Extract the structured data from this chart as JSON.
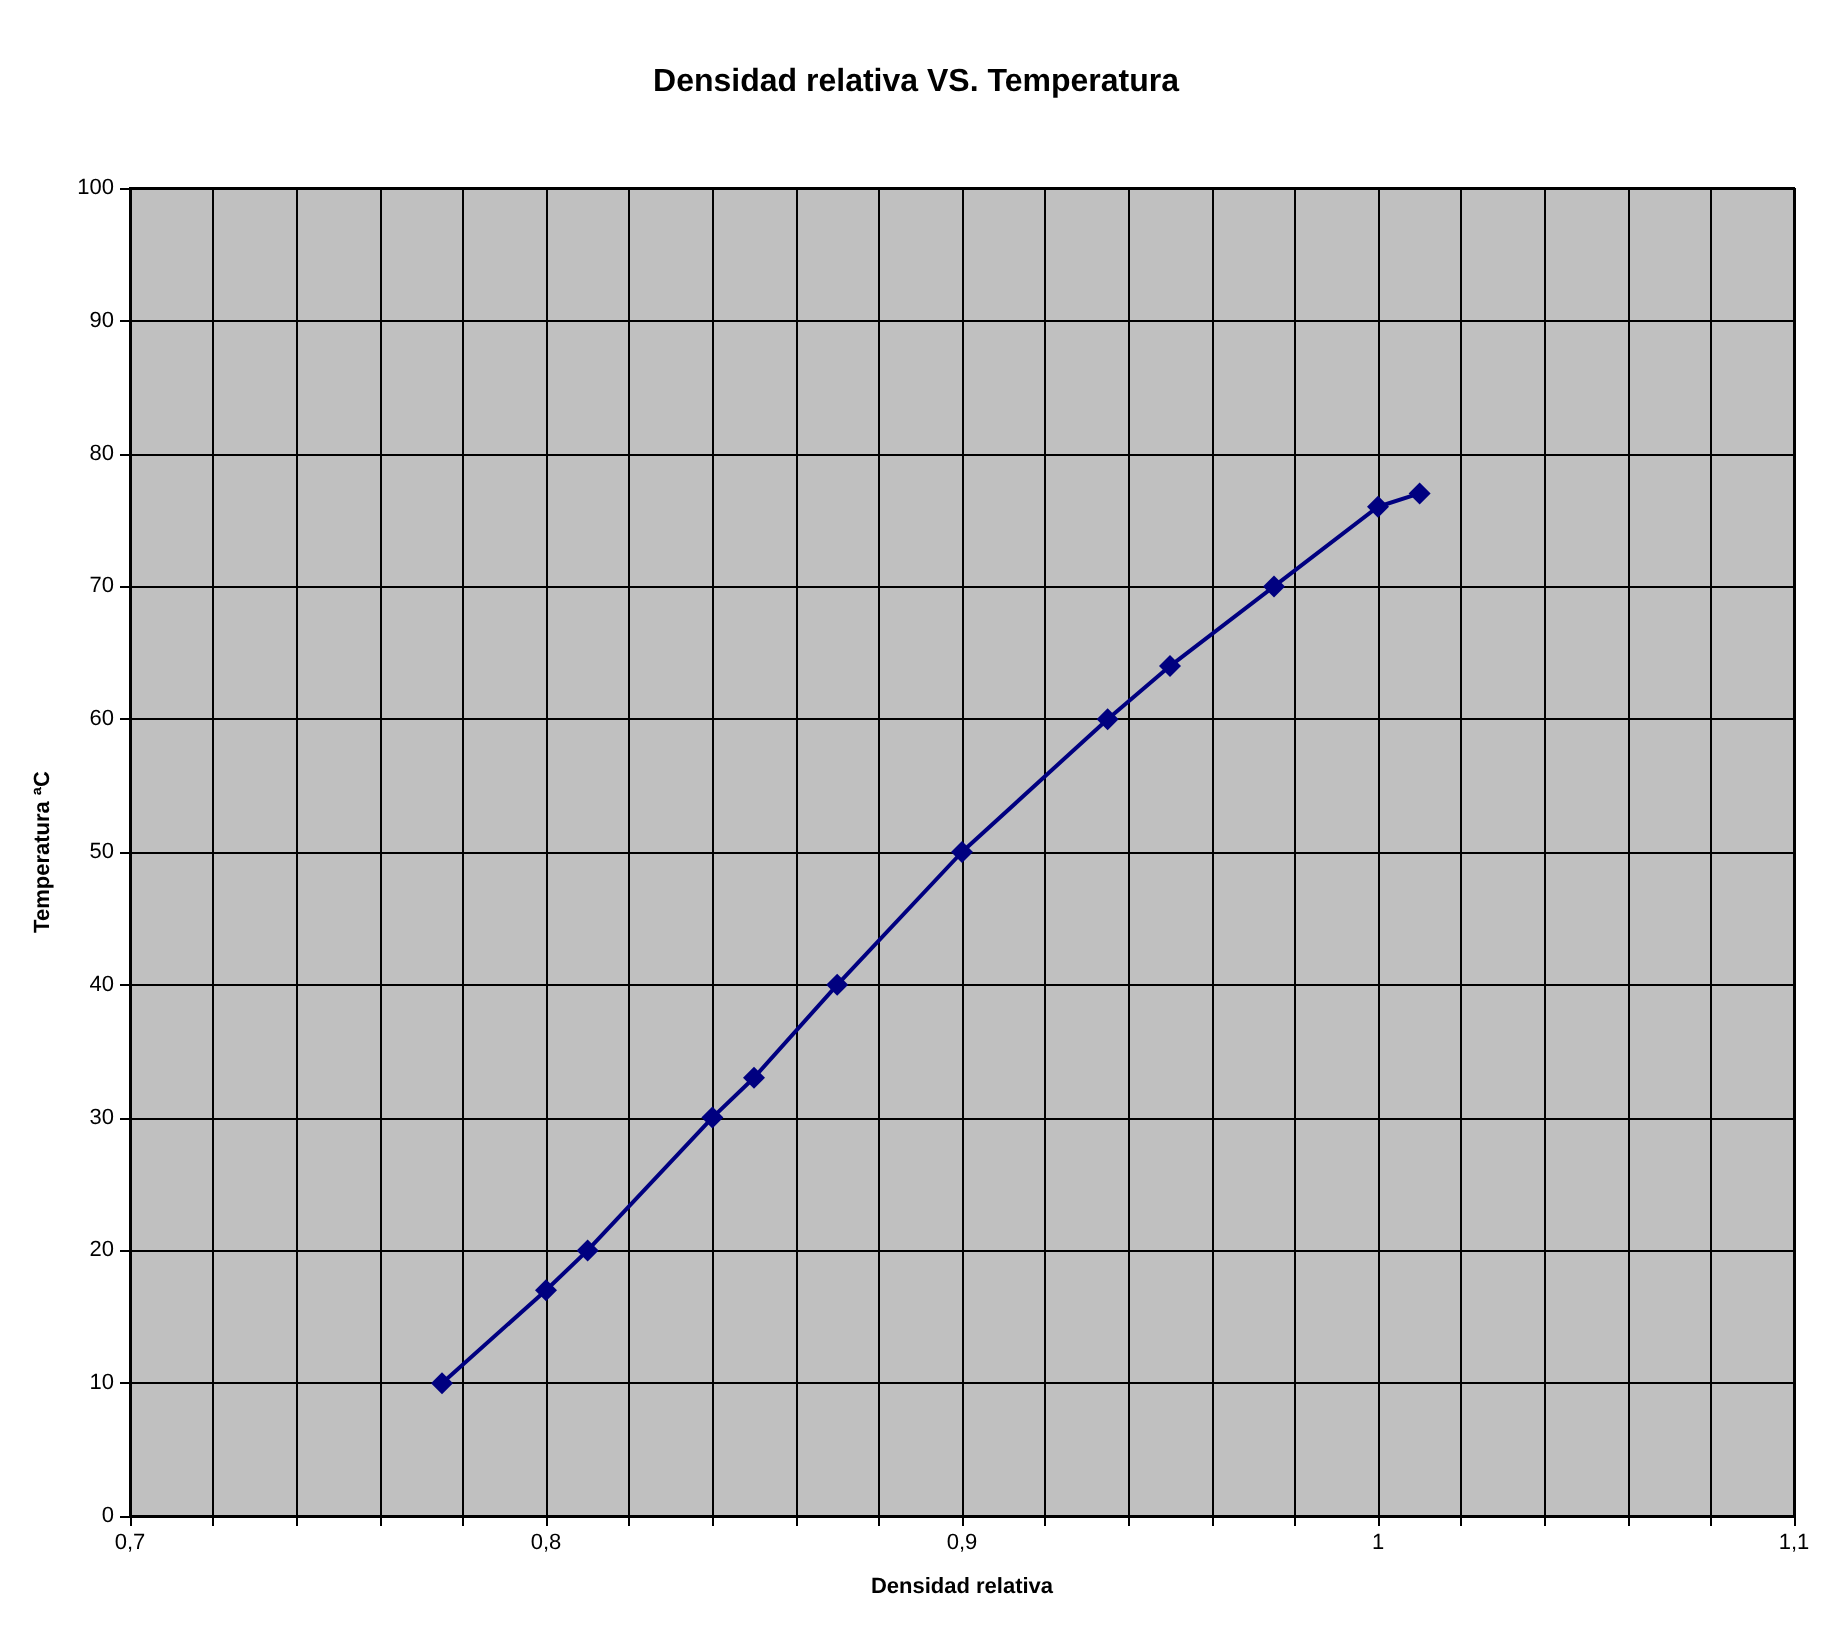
{
  "chart_data": {
    "type": "line",
    "title": "Densidad relativa VS. Temperatura",
    "xlabel": "Densidad relativa",
    "ylabel": "Temperatura ªC",
    "x": [
      0.775,
      0.8,
      0.81,
      0.84,
      0.85,
      0.87,
      0.9,
      0.935,
      0.95,
      0.975,
      1.0,
      1.01
    ],
    "series": [
      {
        "color": "#000080",
        "values": [
          10,
          17,
          20,
          30,
          33,
          40,
          50,
          60,
          64,
          70,
          76,
          77
        ]
      }
    ],
    "xlim": [
      0.7,
      1.1
    ],
    "xticks": [
      {
        "value": 0.7,
        "label": "0,7"
      },
      {
        "value": 0.72,
        "label": null
      },
      {
        "value": 0.74,
        "label": null
      },
      {
        "value": 0.76,
        "label": null
      },
      {
        "value": 0.78,
        "label": null
      },
      {
        "value": 0.8,
        "label": "0,8"
      },
      {
        "value": 0.82,
        "label": null
      },
      {
        "value": 0.84,
        "label": null
      },
      {
        "value": 0.86,
        "label": null
      },
      {
        "value": 0.88,
        "label": null
      },
      {
        "value": 0.9,
        "label": "0,9"
      },
      {
        "value": 0.92,
        "label": null
      },
      {
        "value": 0.94,
        "label": null
      },
      {
        "value": 0.96,
        "label": null
      },
      {
        "value": 0.98,
        "label": null
      },
      {
        "value": 1,
        "label": "1"
      },
      {
        "value": 1.02,
        "label": null
      },
      {
        "value": 1.04,
        "label": null
      },
      {
        "value": 1.06,
        "label": null
      },
      {
        "value": 1.08,
        "label": null
      },
      {
        "value": 1.1,
        "label": "1,1"
      }
    ],
    "ylim": [
      0,
      100
    ],
    "yticks": [
      0,
      10,
      20,
      30,
      40,
      50,
      60,
      70,
      80,
      90,
      100
    ],
    "grid": true,
    "marker": "diamond",
    "line_style": "solid"
  }
}
